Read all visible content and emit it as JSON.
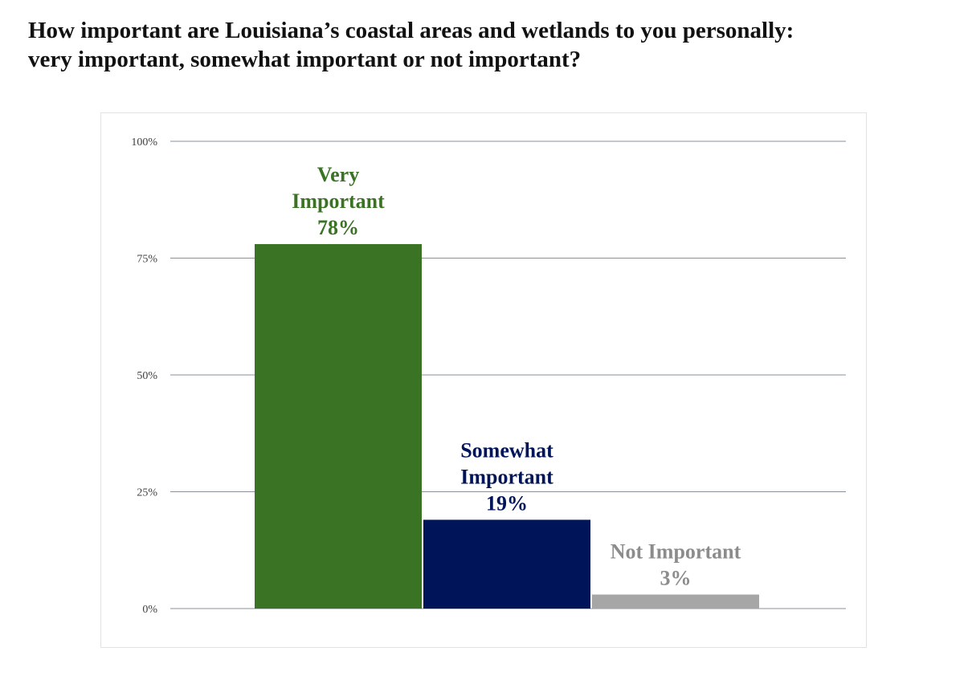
{
  "title": {
    "line1": "How important are Louisiana’s coastal areas and wetlands to you personally:",
    "line2": "very important, somewhat important or not important?"
  },
  "colors": {
    "very_important": "#3b7324",
    "somewhat_important": "#00145a",
    "not_important": "#a6a6a6",
    "not_important_label": "#8c8c8c",
    "gridline": "#8a8f98",
    "tick_label": "#404040"
  },
  "chart_data": {
    "type": "bar",
    "title": "How important are Louisiana’s coastal areas and wetlands to you personally: very important, somewhat important or not important?",
    "xlabel": "",
    "ylabel": "",
    "ylim": [
      0,
      100
    ],
    "y_ticks": [
      0,
      25,
      50,
      75,
      100
    ],
    "y_tick_labels": [
      "0%",
      "25%",
      "50%",
      "75%",
      "100%"
    ],
    "grid": true,
    "legend": "none",
    "categories": [
      "Very Important",
      "Somewhat Important",
      "Not Important"
    ],
    "values": [
      78,
      19,
      3
    ],
    "data_labels": [
      [
        "Very",
        "Important",
        "78%"
      ],
      [
        "Somewhat",
        "Important",
        "19%"
      ],
      [
        "Not Important",
        "3%"
      ]
    ],
    "bar_colors": [
      "#3b7324",
      "#00145a",
      "#a6a6a6"
    ],
    "label_colors": [
      "#3b7324",
      "#00145a",
      "#8c8c8c"
    ]
  }
}
